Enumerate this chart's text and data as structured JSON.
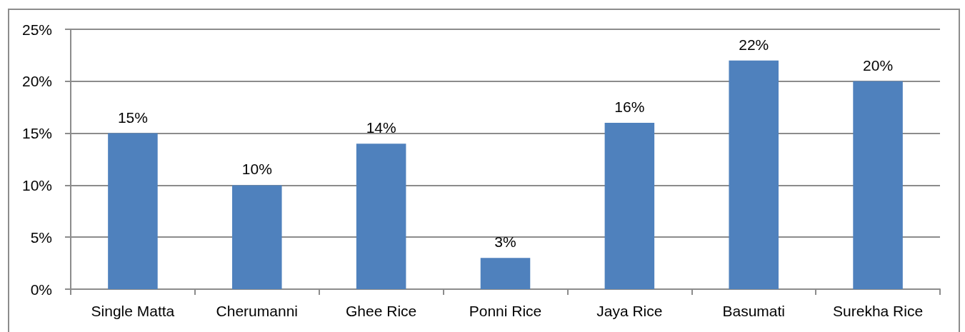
{
  "chart_data": {
    "type": "bar",
    "categories": [
      "Single Matta",
      "Cherumanni",
      "Ghee Rice",
      "Ponni Rice",
      "Jaya Rice",
      "Basumati",
      "Surekha Rice"
    ],
    "values": [
      15,
      10,
      14,
      3,
      16,
      22,
      20
    ],
    "value_labels": [
      "15%",
      "10%",
      "14%",
      "3%",
      "16%",
      "22%",
      "20%"
    ],
    "color": "#4f81bd",
    "ylim": [
      0,
      25
    ],
    "yticks": [
      {
        "value": 0,
        "label": "0%"
      },
      {
        "value": 5,
        "label": "5%"
      },
      {
        "value": 10,
        "label": "10%"
      },
      {
        "value": 15,
        "label": "15%"
      },
      {
        "value": 20,
        "label": "20%"
      },
      {
        "value": 25,
        "label": "25%"
      }
    ],
    "grid": "y"
  }
}
